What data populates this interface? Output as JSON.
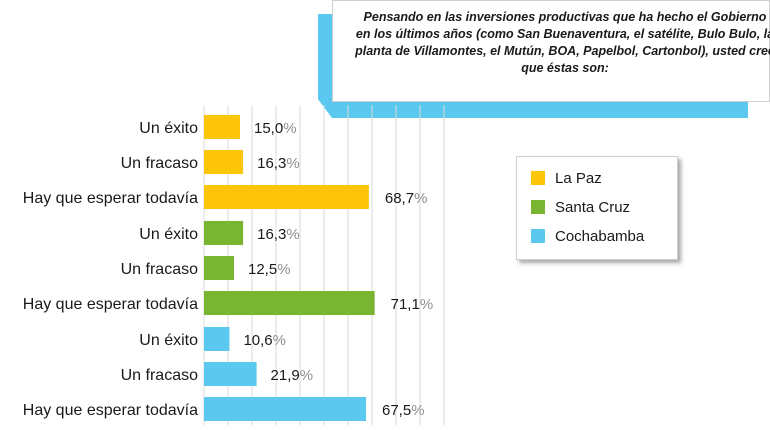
{
  "title": "Pensando en las inversiones productivas que ha hecho el Gobierno en los últimos años (como San Buenaventura, el satélite, Bulo Bulo, la planta de Villamontes, el Mutún, BOA, Papelbol, Cartonbol), usted cree que éstas son:",
  "colors": {
    "La Paz": "#fcc50a",
    "Santa Cruz": "#7ab531",
    "Cochabamba": "#5bc8ef",
    "grid": "#d9d9d9",
    "percent": "#8f8f8f"
  },
  "chart_data": {
    "type": "bar",
    "orientation": "horizontal",
    "title": "Pensando en las inversiones productivas que ha hecho el Gobierno en los últimos años (como San Buenaventura, el satélite, Bulo Bulo, la planta de Villamontes, el Mutún, BOA, Papelbol, Cartonbol), usted cree que éstas son:",
    "categories": [
      "Un éxito",
      "Un fracaso",
      "Hay que esperar todavía"
    ],
    "unit": "%",
    "xlim": [
      0,
      100
    ],
    "grid": true,
    "legend_position": "right",
    "series": [
      {
        "name": "La Paz",
        "values": [
          15.0,
          16.3,
          68.7
        ],
        "labels": [
          "15,0",
          "16,3",
          "68,7"
        ]
      },
      {
        "name": "Santa Cruz",
        "values": [
          16.3,
          12.5,
          71.1
        ],
        "labels": [
          "16,3",
          "12,5",
          "71,1"
        ]
      },
      {
        "name": "Cochabamba",
        "values": [
          10.6,
          21.9,
          67.5
        ],
        "labels": [
          "10,6",
          "21,9",
          "67,5"
        ]
      }
    ]
  }
}
